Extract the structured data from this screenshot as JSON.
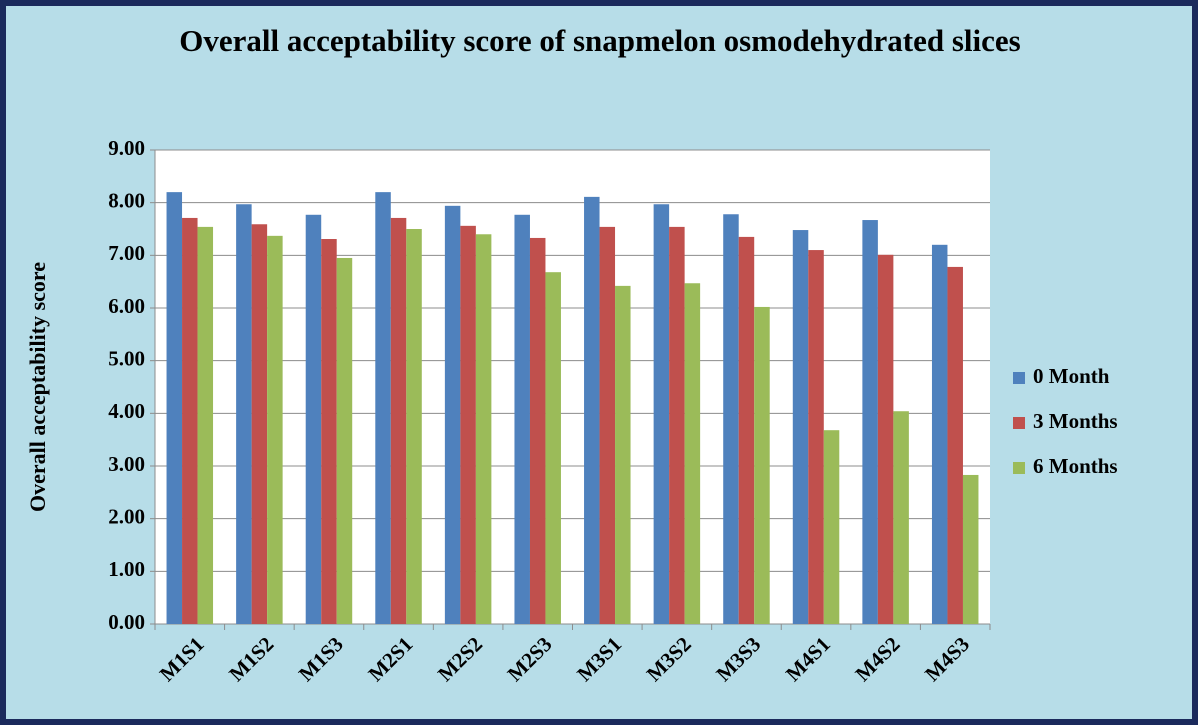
{
  "chart_data": {
    "type": "bar",
    "title": "Overall acceptability score of snapmelon osmodehydrated slices",
    "y_label": "Overall acceptability score",
    "categories": [
      "M1S1",
      "M1S2",
      "M1S3",
      "M2S1",
      "M2S2",
      "M2S3",
      "M3S1",
      "M3S2",
      "M3S3",
      "M4S1",
      "M4S2",
      "M4S3"
    ],
    "series": [
      {
        "name": "0 Month",
        "color": "#4f81bd",
        "values": [
          8.2,
          7.97,
          7.77,
          8.2,
          7.94,
          7.77,
          8.11,
          7.97,
          7.78,
          7.48,
          7.67,
          7.2
        ]
      },
      {
        "name": "3 Months",
        "color": "#c0504d",
        "values": [
          7.71,
          7.59,
          7.31,
          7.71,
          7.56,
          7.33,
          7.54,
          7.54,
          7.35,
          7.1,
          7.01,
          6.78
        ]
      },
      {
        "name": "6 Months",
        "color": "#9bbb59",
        "values": [
          7.54,
          7.37,
          6.95,
          7.5,
          7.4,
          6.68,
          6.42,
          6.47,
          6.02,
          3.68,
          4.04,
          2.83
        ]
      }
    ],
    "ylim": [
      0,
      9
    ],
    "yticks": [
      {
        "value": 0,
        "label": "0.00"
      },
      {
        "value": 1,
        "label": "1.00"
      },
      {
        "value": 2,
        "label": "2.00"
      },
      {
        "value": 3,
        "label": "3.00"
      },
      {
        "value": 4,
        "label": "4.00"
      },
      {
        "value": 5,
        "label": "5.00"
      },
      {
        "value": 6,
        "label": "6.00"
      },
      {
        "value": 7,
        "label": "7.00"
      },
      {
        "value": 8,
        "label": "8.00"
      },
      {
        "value": 9,
        "label": "9.00"
      }
    ],
    "grid": true,
    "legend": "right"
  }
}
